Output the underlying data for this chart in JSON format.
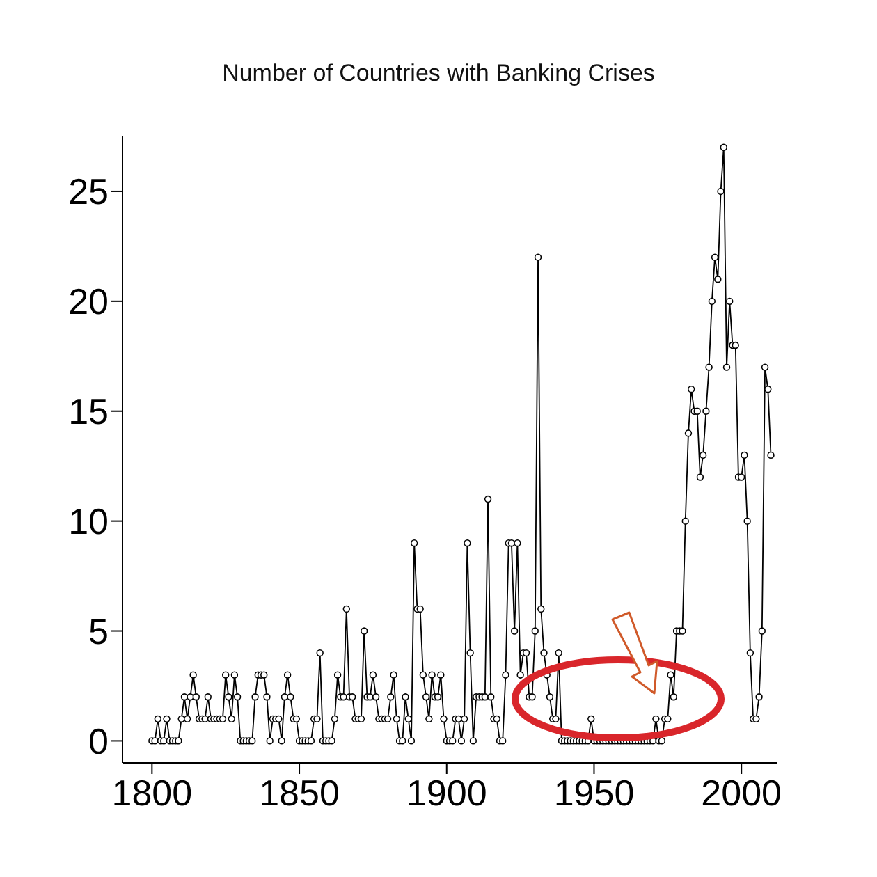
{
  "chart_data": {
    "type": "line",
    "title": "Number of Countries with Banking Crises",
    "x": [
      1800,
      1801,
      1802,
      1803,
      1804,
      1805,
      1806,
      1807,
      1808,
      1809,
      1810,
      1811,
      1812,
      1813,
      1814,
      1815,
      1816,
      1817,
      1818,
      1819,
      1820,
      1821,
      1822,
      1823,
      1824,
      1825,
      1826,
      1827,
      1828,
      1829,
      1830,
      1831,
      1832,
      1833,
      1834,
      1835,
      1836,
      1837,
      1838,
      1839,
      1840,
      1841,
      1842,
      1843,
      1844,
      1845,
      1846,
      1847,
      1848,
      1849,
      1850,
      1851,
      1852,
      1853,
      1854,
      1855,
      1856,
      1857,
      1858,
      1859,
      1860,
      1861,
      1862,
      1863,
      1864,
      1865,
      1866,
      1867,
      1868,
      1869,
      1870,
      1871,
      1872,
      1873,
      1874,
      1875,
      1876,
      1877,
      1878,
      1879,
      1880,
      1881,
      1882,
      1883,
      1884,
      1885,
      1886,
      1887,
      1888,
      1889,
      1890,
      1891,
      1892,
      1893,
      1894,
      1895,
      1896,
      1897,
      1898,
      1899,
      1900,
      1901,
      1902,
      1903,
      1904,
      1905,
      1906,
      1907,
      1908,
      1909,
      1910,
      1911,
      1912,
      1913,
      1914,
      1915,
      1916,
      1917,
      1918,
      1919,
      1920,
      1921,
      1922,
      1923,
      1924,
      1925,
      1926,
      1927,
      1928,
      1929,
      1930,
      1931,
      1932,
      1933,
      1934,
      1935,
      1936,
      1937,
      1938,
      1939,
      1940,
      1941,
      1942,
      1943,
      1944,
      1945,
      1946,
      1947,
      1948,
      1949,
      1950,
      1951,
      1952,
      1953,
      1954,
      1955,
      1956,
      1957,
      1958,
      1959,
      1960,
      1961,
      1962,
      1963,
      1964,
      1965,
      1966,
      1967,
      1968,
      1969,
      1970,
      1971,
      1972,
      1973,
      1974,
      1975,
      1976,
      1977,
      1978,
      1979,
      1980,
      1981,
      1982,
      1983,
      1984,
      1985,
      1986,
      1987,
      1988,
      1989,
      1990,
      1991,
      1992,
      1993,
      1994,
      1995,
      1996,
      1997,
      1998,
      1999,
      2000,
      2001,
      2002,
      2003,
      2004,
      2005,
      2006,
      2007,
      2008,
      2009,
      2010
    ],
    "series": [
      {
        "color": "#000000",
        "values": [
          0,
          0,
          1,
          0,
          0,
          1,
          0,
          0,
          0,
          0,
          1,
          2,
          1,
          2,
          3,
          2,
          1,
          1,
          1,
          2,
          1,
          1,
          1,
          1,
          1,
          3,
          2,
          1,
          3,
          2,
          0,
          0,
          0,
          0,
          0,
          2,
          3,
          3,
          3,
          2,
          0,
          1,
          1,
          1,
          0,
          2,
          3,
          2,
          1,
          1,
          0,
          0,
          0,
          0,
          0,
          1,
          1,
          4,
          0,
          0,
          0,
          0,
          1,
          3,
          2,
          2,
          6,
          2,
          2,
          1,
          1,
          1,
          5,
          2,
          2,
          3,
          2,
          1,
          1,
          1,
          1,
          2,
          3,
          1,
          0,
          0,
          2,
          1,
          0,
          9,
          6,
          6,
          3,
          2,
          1,
          3,
          2,
          2,
          3,
          1,
          0,
          0,
          0,
          1,
          1,
          0,
          1,
          9,
          4,
          0,
          2,
          2,
          2,
          2,
          11,
          2,
          1,
          1,
          0,
          0,
          3,
          9,
          9,
          5,
          9,
          3,
          4,
          4,
          2,
          2,
          5,
          22,
          6,
          4,
          3,
          2,
          1,
          1,
          4,
          0,
          0,
          0,
          0,
          0,
          0,
          0,
          0,
          0,
          0,
          1,
          0,
          0,
          0,
          0,
          0,
          0,
          0,
          0,
          0,
          0,
          0,
          0,
          0,
          0,
          0,
          0,
          0,
          0,
          0,
          0,
          0,
          1,
          0,
          0,
          1,
          1,
          3,
          2,
          5,
          5,
          5,
          10,
          14,
          16,
          15,
          15,
          12,
          13,
          15,
          17,
          20,
          22,
          21,
          25,
          27,
          17,
          20,
          18,
          18,
          12,
          12,
          13,
          10,
          4,
          1,
          1,
          2,
          5,
          17,
          16,
          13
        ]
      }
    ],
    "xlim": [
      1790,
      2012
    ],
    "xticks": [
      1800,
      1850,
      1900,
      1950,
      2000
    ],
    "ylim": [
      -1,
      27.5
    ],
    "yticks": [
      0,
      5,
      10,
      15,
      20,
      25
    ],
    "marker": "circle",
    "line_style": "solid"
  }
}
